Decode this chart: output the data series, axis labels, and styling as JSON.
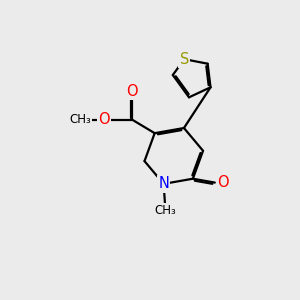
{
  "background_color": "#ebebeb",
  "atom_colors": {
    "S": "#999900",
    "O": "#ff0000",
    "N": "#0000ff",
    "C": "#000000"
  },
  "bond_lw": 1.6,
  "dbo": 0.055,
  "fs": 9.5
}
